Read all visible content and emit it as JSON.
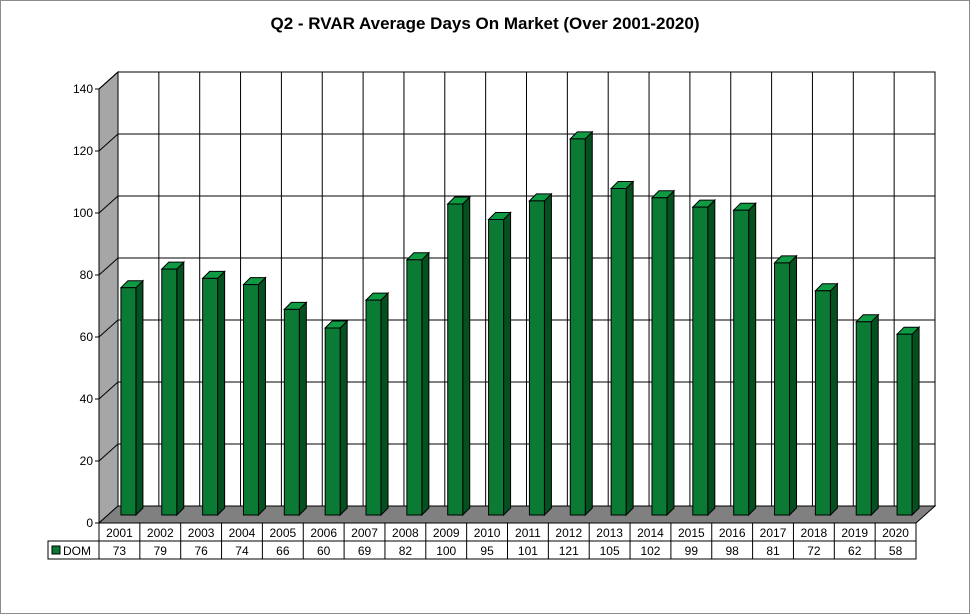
{
  "chart_data": {
    "type": "bar",
    "title": "Q2 - RVAR Average Days On Market (Over 2001-2020)",
    "categories": [
      "2001",
      "2002",
      "2003",
      "2004",
      "2005",
      "2006",
      "2007",
      "2008",
      "2009",
      "2010",
      "2011",
      "2012",
      "2013",
      "2014",
      "2015",
      "2016",
      "2017",
      "2018",
      "2019",
      "2020"
    ],
    "series": [
      {
        "name": "DOM",
        "values": [
          73,
          79,
          76,
          74,
          66,
          60,
          69,
          82,
          100,
          95,
          101,
          121,
          105,
          102,
          99,
          98,
          81,
          72,
          62,
          58
        ],
        "color": "#0a7a35"
      }
    ],
    "ylim": [
      0,
      140
    ],
    "yticks": [
      0,
      20,
      40,
      60,
      80,
      100,
      120,
      140
    ],
    "grid": true,
    "legend": "data-table"
  }
}
